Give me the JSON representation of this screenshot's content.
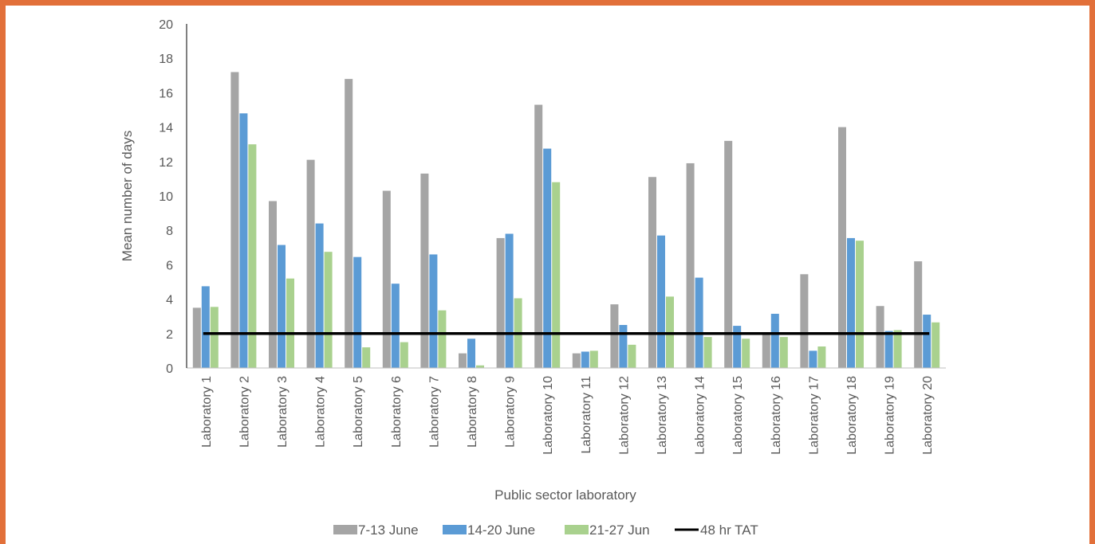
{
  "chart_data": {
    "type": "bar",
    "xlabel": "Public sector laboratory",
    "ylabel": "Mean number of days",
    "ylim": [
      0,
      20
    ],
    "yticks": [
      0,
      2,
      4,
      6,
      8,
      10,
      12,
      14,
      16,
      18,
      20
    ],
    "grid": false,
    "legend_position": "bottom",
    "categories": [
      "Laboratory 1",
      "Laboratory 2",
      "Laboratory 3",
      "Laboratory 4",
      "Laboratory 5",
      "Laboratory 6",
      "Laboratory 7",
      "Laboratory 8",
      "Laboratory 9",
      "Laboratory 10",
      "Laboratory 11",
      "Laboratory 12",
      "Laboratory 13",
      "Laboratory 14",
      "Laboratory 15",
      "Laboratory 16",
      "Laboratory 17",
      "Laboratory 18",
      "Laboratory 19",
      "Laboratory 20"
    ],
    "series": [
      {
        "name": "7-13 June",
        "color": "#A5A5A5",
        "values": [
          3.5,
          17.2,
          9.7,
          12.1,
          16.8,
          10.3,
          11.3,
          0.85,
          7.55,
          15.3,
          0.85,
          3.7,
          11.1,
          11.9,
          13.2,
          2.0,
          5.45,
          14.0,
          3.6,
          6.2
        ]
      },
      {
        "name": "14-20 June",
        "color": "#5B9BD5",
        "values": [
          4.75,
          14.8,
          7.15,
          8.4,
          6.45,
          4.9,
          6.6,
          1.7,
          7.8,
          12.75,
          0.95,
          2.5,
          7.7,
          5.25,
          2.45,
          3.15,
          1.0,
          7.55,
          2.15,
          3.1
        ]
      },
      {
        "name": "21-27 Jun",
        "color": "#A9D18E",
        "values": [
          3.55,
          13.0,
          5.2,
          6.75,
          1.2,
          1.5,
          3.35,
          0.15,
          4.05,
          10.8,
          1.0,
          1.35,
          4.15,
          1.8,
          1.7,
          1.8,
          1.25,
          7.4,
          2.2,
          2.65
        ]
      }
    ],
    "reference_line": {
      "name": "48 hr TAT",
      "value": 2,
      "color": "#000000"
    }
  }
}
